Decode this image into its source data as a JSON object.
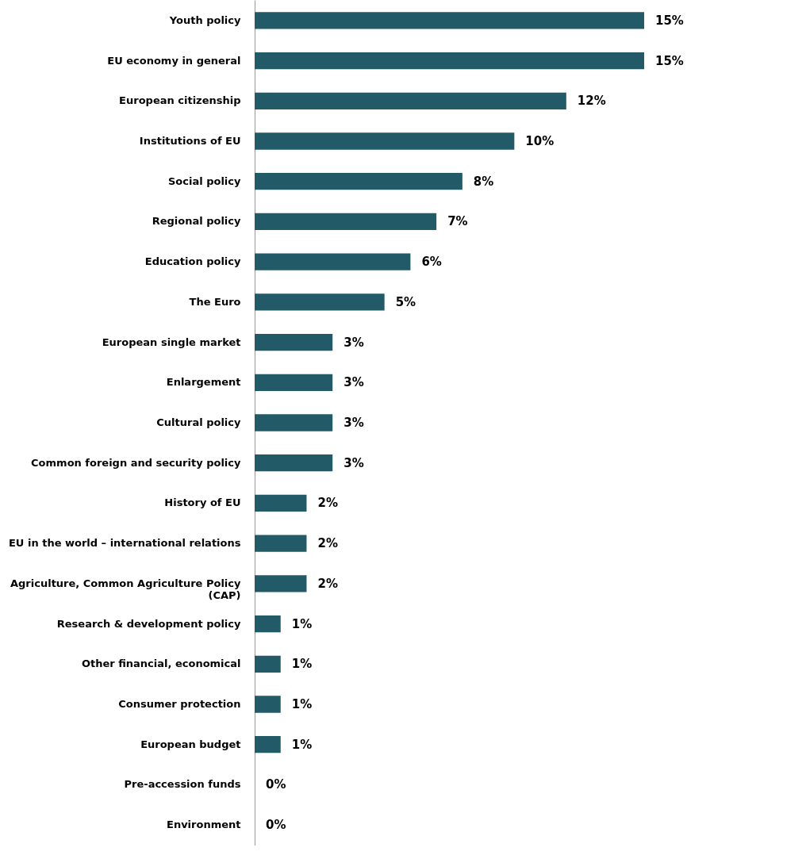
{
  "chart_data": {
    "type": "bar",
    "orientation": "horizontal",
    "categories": [
      "Youth policy",
      "EU economy in general",
      "European citizenship",
      "Institutions of EU",
      "Social policy",
      "Regional policy",
      "Education policy",
      "The Euro",
      "European single market",
      "Enlargement",
      "Cultural policy",
      "Common foreign and security policy",
      "History of EU",
      "EU in the world – international relations",
      "Agriculture, Common Agriculture Policy (CAP)",
      "Research & development policy",
      "Other financial, economical",
      "Consumer protection",
      "European budget",
      "Pre-accession funds",
      "Environment"
    ],
    "values": [
      15,
      15,
      12,
      10,
      8,
      7,
      6,
      5,
      3,
      3,
      3,
      3,
      2,
      2,
      2,
      1,
      1,
      1,
      1,
      0,
      0
    ],
    "value_labels": [
      "15%",
      "15%",
      "12%",
      "10%",
      "8%",
      "7%",
      "6%",
      "5%",
      "3%",
      "3%",
      "3%",
      "3%",
      "2%",
      "2%",
      "2%",
      "1%",
      "1%",
      "1%",
      "1%",
      "0%",
      "0%"
    ],
    "color": "#235a68",
    "grid": false
  }
}
